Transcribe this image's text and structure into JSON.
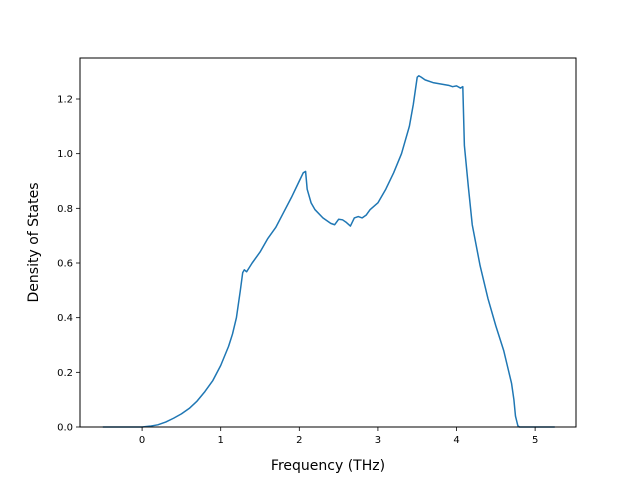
{
  "chart_data": {
    "type": "line",
    "title": "",
    "xlabel": "Frequency (THz)",
    "ylabel": "Density of States",
    "xlim": [
      -0.79,
      5.52
    ],
    "ylim": [
      0.0,
      1.35
    ],
    "xticks": [
      0,
      1,
      2,
      3,
      4,
      5
    ],
    "yticks": [
      0.0,
      0.2,
      0.4,
      0.6,
      0.8,
      1.0,
      1.2
    ],
    "xtick_labels": [
      "0",
      "1",
      "2",
      "3",
      "4",
      "5"
    ],
    "ytick_labels": [
      "0.0",
      "0.2",
      "0.4",
      "0.6",
      "0.8",
      "1.0",
      "1.2"
    ],
    "grid": false,
    "legend": "none",
    "series": [
      {
        "color": "#1f77b4",
        "x": [
          -0.5,
          0.0,
          0.1,
          0.2,
          0.3,
          0.4,
          0.5,
          0.6,
          0.7,
          0.8,
          0.9,
          1.0,
          1.1,
          1.15,
          1.2,
          1.25,
          1.28,
          1.3,
          1.33,
          1.4,
          1.5,
          1.6,
          1.7,
          1.8,
          1.9,
          2.0,
          2.05,
          2.08,
          2.1,
          2.15,
          2.2,
          2.3,
          2.4,
          2.45,
          2.5,
          2.55,
          2.6,
          2.65,
          2.7,
          2.75,
          2.8,
          2.85,
          2.9,
          3.0,
          3.1,
          3.2,
          3.3,
          3.4,
          3.45,
          3.5,
          3.52,
          3.55,
          3.6,
          3.7,
          3.8,
          3.9,
          3.95,
          4.0,
          4.05,
          4.08,
          4.1,
          4.15,
          4.2,
          4.3,
          4.4,
          4.5,
          4.6,
          4.65,
          4.7,
          4.73,
          4.75,
          4.78,
          4.8,
          5.0,
          5.25
        ],
        "y": [
          0.0,
          0.0,
          0.003,
          0.008,
          0.018,
          0.032,
          0.048,
          0.068,
          0.095,
          0.13,
          0.17,
          0.225,
          0.295,
          0.34,
          0.4,
          0.5,
          0.565,
          0.575,
          0.568,
          0.6,
          0.64,
          0.69,
          0.73,
          0.785,
          0.84,
          0.9,
          0.93,
          0.935,
          0.87,
          0.82,
          0.795,
          0.765,
          0.745,
          0.74,
          0.76,
          0.758,
          0.748,
          0.735,
          0.765,
          0.77,
          0.765,
          0.775,
          0.795,
          0.82,
          0.87,
          0.93,
          1.0,
          1.1,
          1.18,
          1.28,
          1.285,
          1.28,
          1.27,
          1.26,
          1.255,
          1.25,
          1.245,
          1.248,
          1.24,
          1.245,
          1.03,
          0.88,
          0.74,
          0.59,
          0.47,
          0.37,
          0.28,
          0.22,
          0.16,
          0.1,
          0.04,
          0.005,
          0.0,
          0.0,
          0.0
        ]
      }
    ]
  }
}
